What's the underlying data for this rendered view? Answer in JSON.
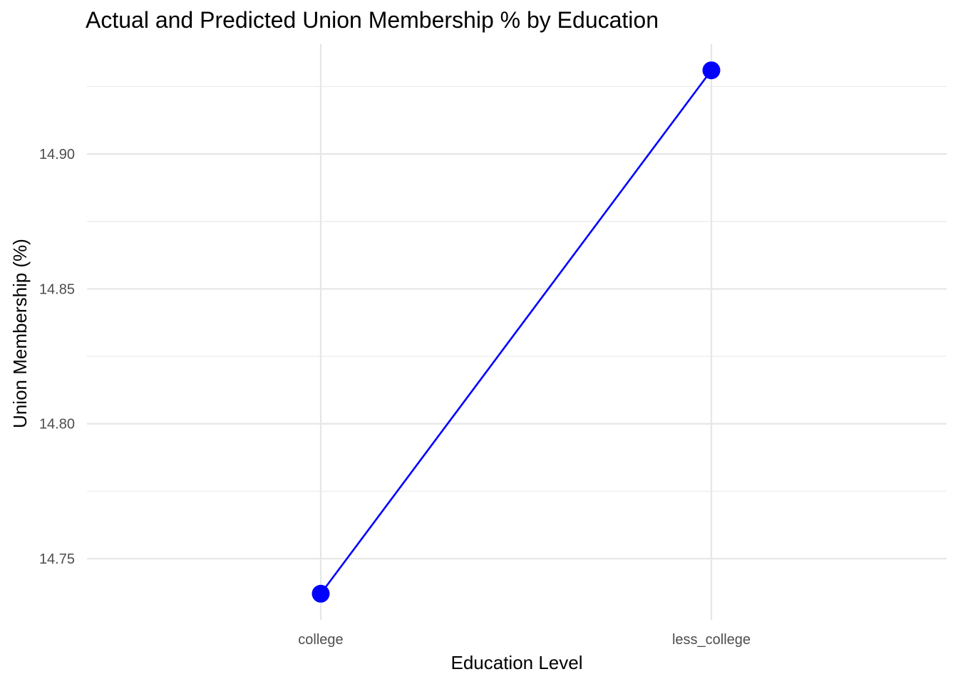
{
  "chart_data": {
    "type": "line",
    "title": "Actual and Predicted Union Membership % by Education",
    "xlabel": "Education Level",
    "ylabel": "Union Membership (%)",
    "categories": [
      "college",
      "less_college"
    ],
    "series": [
      {
        "values": [
          14.737,
          14.931
        ],
        "color": "#0000ff"
      }
    ],
    "y_ticks": [
      14.75,
      14.8,
      14.85,
      14.9
    ],
    "y_tick_labels": [
      "14.75",
      "14.80",
      "14.85",
      "14.90"
    ],
    "ylim": [
      14.7273,
      14.9407
    ],
    "grid": true,
    "legend": "none"
  }
}
